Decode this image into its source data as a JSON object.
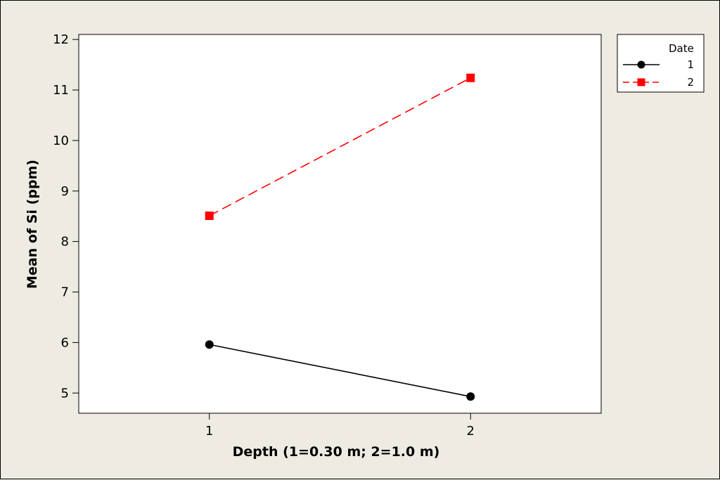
{
  "chart_data": {
    "type": "line",
    "title": "",
    "xlabel": "Depth (1=0.30 m; 2=1.0 m)",
    "ylabel": "Mean of Si (ppm)",
    "categories": [
      "1",
      "2"
    ],
    "x": [
      1,
      2
    ],
    "xlim": [
      0.5,
      2.5
    ],
    "ylim": [
      4.6,
      12.1
    ],
    "yticks": [
      5,
      6,
      7,
      8,
      9,
      10,
      11,
      12
    ],
    "grid": false,
    "legend": {
      "title": "Date",
      "placement": "right, outside plot, top"
    },
    "series": [
      {
        "name": "1",
        "values": [
          5.96,
          4.93
        ],
        "color": "#000000",
        "marker": "circle",
        "line": "solid"
      },
      {
        "name": "2",
        "values": [
          8.51,
          11.24
        ],
        "color": "#ff0000",
        "marker": "square",
        "line": "dashed"
      }
    ]
  }
}
